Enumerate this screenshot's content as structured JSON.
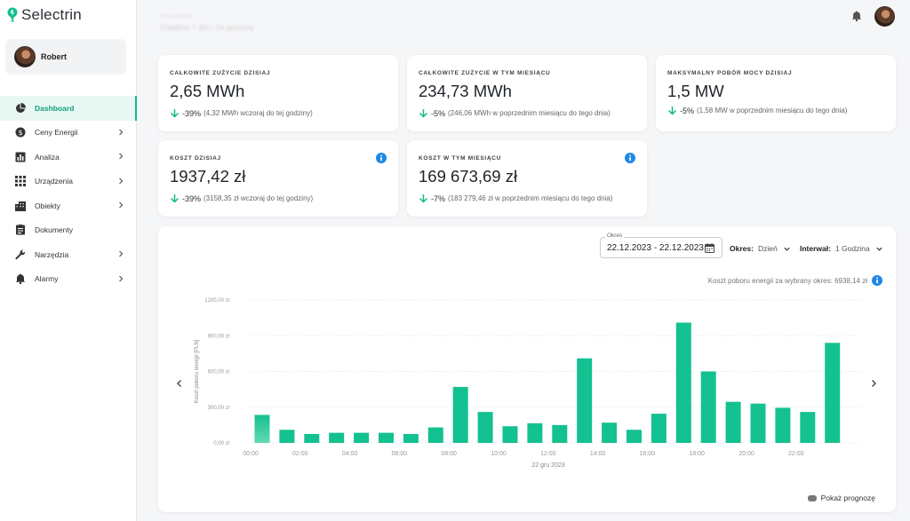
{
  "app": {
    "name": "Selectrin"
  },
  "user": {
    "name": "Robert"
  },
  "topbar": {
    "period_label": "Okres raportu",
    "period_value": "Ostatnie 7 dni i 24 godziny"
  },
  "sidebar": {
    "items": [
      {
        "label": "Dashboard",
        "icon": "pie-chart-icon",
        "active": true,
        "expandable": false
      },
      {
        "label": "Ceny Energii",
        "icon": "dollar-icon",
        "active": false,
        "expandable": true
      },
      {
        "label": "Analiza",
        "icon": "bar-chart-icon",
        "active": false,
        "expandable": true
      },
      {
        "label": "Urządzenia",
        "icon": "grid-icon",
        "active": false,
        "expandable": true
      },
      {
        "label": "Obiekty",
        "icon": "building-icon",
        "active": false,
        "expandable": true
      },
      {
        "label": "Dokumenty",
        "icon": "document-icon",
        "active": false,
        "expandable": false
      },
      {
        "label": "Narzędzia",
        "icon": "wrench-icon",
        "active": false,
        "expandable": true
      },
      {
        "label": "Alarmy",
        "icon": "bell-icon",
        "active": false,
        "expandable": true
      }
    ]
  },
  "cards": [
    {
      "label": "CAŁKOWITE ZUŻYCIE DZISIAJ",
      "value": "2,65 MWh",
      "pct": "-39%",
      "cmp": "(4,32 MWh wczoraj do tej godziny)",
      "info": false
    },
    {
      "label": "CAŁKOWITE ZUŻYCIE W TYM MIESIĄCU",
      "value": "234,73 MWh",
      "pct": "-5%",
      "cmp": "(246,06 MWh w poprzednim miesiącu do tego dnia)",
      "info": false
    },
    {
      "label": "MAKSYMALNY POBÓR MOCY DZISIAJ",
      "value": "1,5 MW",
      "pct": "-5%",
      "cmp": "(1,58 MW w poprzednim miesiącu do tego dnia)",
      "info": false
    },
    {
      "label": "KOSZT DZISIAJ",
      "value": "1937,42 zł",
      "pct": "-39%",
      "cmp": "(3158,35 zł wczoraj do tej godziny)",
      "info": true
    },
    {
      "label": "KOSZT W TYM MIESIĄCU",
      "value": "169 673,69 zł",
      "pct": "-7%",
      "cmp": "(183 279,46 zł w poprzednim miesiącu do tego dnia)",
      "info": true
    }
  ],
  "chart_panel": {
    "date_label": "Okres",
    "date_value": "22.12.2023 - 22.12.2023",
    "okres_label": "Okres:",
    "okres_value": "Dzień",
    "interval_label": "Interwał:",
    "interval_value": "1 Godzina",
    "cost_note": "Koszt poboru energii za wybrany okres: 6938,14 zł",
    "forecast_label": "Pokaż prognozę"
  },
  "colors": {
    "accent": "#12b88c",
    "bar": "#14c191",
    "info": "#1e88e5",
    "delta_arrow": "#12b88c"
  },
  "chart_data": {
    "type": "bar",
    "ylabel": "Koszt poboru energii [PLN]",
    "xlabel": "22 gru 2023",
    "ylim": [
      0,
      1200
    ],
    "y_ticks": [
      "0,00 zł",
      "300,00 zł",
      "600,00 zł",
      "900,00 zł",
      "1200,00 zł"
    ],
    "x_ticks": [
      "00:00",
      "02:00",
      "04:00",
      "06:00",
      "08:00",
      "10:00",
      "12:00",
      "14:00",
      "16:00",
      "18:00",
      "20:00",
      "22:00"
    ],
    "categories": [
      "00:00",
      "01:00",
      "02:00",
      "03:00",
      "04:00",
      "05:00",
      "06:00",
      "07:00",
      "08:00",
      "09:00",
      "10:00",
      "11:00",
      "12:00",
      "13:00",
      "14:00",
      "15:00",
      "16:00",
      "17:00",
      "18:00",
      "19:00",
      "20:00",
      "21:00",
      "22:00",
      "23:00"
    ],
    "values": [
      235,
      110,
      75,
      85,
      85,
      85,
      75,
      130,
      470,
      260,
      140,
      165,
      150,
      710,
      170,
      110,
      245,
      1010,
      600,
      345,
      330,
      295,
      260,
      840
    ],
    "grid": true
  }
}
